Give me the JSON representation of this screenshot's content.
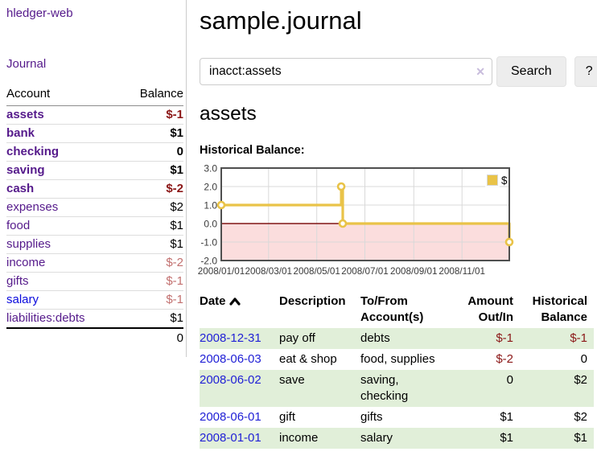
{
  "palette": {
    "link_purple": "#551a8b",
    "link_blue": "#0b0bdd",
    "date_link_blue": "#2121d6",
    "negative_red": "#8b1717",
    "faded_negative_red": "#c2706f",
    "zebra_green": "#e1efd9",
    "series_yellow": "#e9c348",
    "negative_region_pink": "#fbdddd",
    "zero_line_red": "#801515",
    "plot_border_gray": "#4f4f4f",
    "grid_gray": "#d9d9d9",
    "button_gray": "#ededed"
  },
  "sidebar": {
    "brand": "hledger-web",
    "nav": {
      "journal": "Journal"
    },
    "accounts_table": {
      "headers": {
        "account": "Account",
        "balance": "Balance"
      },
      "rows": [
        {
          "name": "assets",
          "level": 1,
          "bold": true,
          "balance": "$-1",
          "balance_class": "strong neg"
        },
        {
          "name": "bank",
          "level": 2,
          "bold": true,
          "balance": "$1",
          "balance_class": "strong"
        },
        {
          "name": "checking",
          "level": 3,
          "bold": true,
          "balance": "0",
          "balance_class": "strong"
        },
        {
          "name": "saving",
          "level": 3,
          "bold": true,
          "balance": "$1",
          "balance_class": "strong"
        },
        {
          "name": "cash",
          "level": 2,
          "bold": true,
          "balance": "$-2",
          "balance_class": "strong neg"
        },
        {
          "name": "expenses",
          "level": 1,
          "bold": false,
          "balance": "$2",
          "balance_class": ""
        },
        {
          "name": "food",
          "level": 2,
          "bold": false,
          "balance": "$1",
          "balance_class": ""
        },
        {
          "name": "supplies",
          "level": 2,
          "bold": false,
          "balance": "$1",
          "balance_class": ""
        },
        {
          "name": "income",
          "level": 1,
          "bold": false,
          "balance": "$-2",
          "balance_class": "dim"
        },
        {
          "name": "gifts",
          "level": 2,
          "bold": false,
          "balance": "$-1",
          "balance_class": "dim"
        },
        {
          "name": "salary",
          "level": 2,
          "bold": false,
          "link_style": "unvisited",
          "balance": "$-1",
          "balance_class": "dim"
        },
        {
          "name": "liabilities:debts",
          "level": 1,
          "bold": false,
          "balance": "$1",
          "balance_class": ""
        }
      ],
      "total": "0"
    }
  },
  "main": {
    "title": "sample.journal",
    "search": {
      "value": "inacct:assets",
      "clear_icon": "✕",
      "button": "Search",
      "help": "?"
    },
    "account_heading": "assets",
    "chart_label": "Historical Balance:",
    "register_table": {
      "headers": [
        {
          "label": "Date",
          "sortable": true,
          "align": "left"
        },
        {
          "label": "Description",
          "align": "left"
        },
        {
          "label": "To/From Account(s)",
          "align": "left"
        },
        {
          "label": "Amount Out/In",
          "align": "right"
        },
        {
          "label": "Historical Balance",
          "align": "right"
        }
      ],
      "rows": [
        {
          "date": "2008-12-31",
          "description": "pay off",
          "accounts": [
            "debts"
          ],
          "amount": "$-1",
          "amount_neg": true,
          "balance": "$-1",
          "balance_neg": true
        },
        {
          "date": "2008-06-03",
          "description": "eat & shop",
          "accounts": [
            "food",
            "supplies"
          ],
          "amount": "$-2",
          "amount_neg": true,
          "balance": "0",
          "balance_neg": false
        },
        {
          "date": "2008-06-02",
          "description": "save",
          "accounts": [
            "saving",
            "checking"
          ],
          "amount": "0",
          "amount_neg": false,
          "balance": "$2",
          "balance_neg": false
        },
        {
          "date": "2008-06-01",
          "description": "gift",
          "accounts": [
            "gifts"
          ],
          "amount": "$1",
          "amount_neg": false,
          "balance": "$2",
          "balance_neg": false
        },
        {
          "date": "2008-01-01",
          "description": "income",
          "accounts": [
            "salary"
          ],
          "amount": "$1",
          "amount_neg": false,
          "balance": "$1",
          "balance_neg": false
        }
      ]
    }
  },
  "chart_data": {
    "type": "line",
    "steps": true,
    "title": "Historical Balance",
    "legend": "$",
    "legend_position": "top-right",
    "grid": true,
    "series": [
      {
        "name": "$",
        "color": "#e9c348",
        "points": [
          {
            "date": "2008/01/01",
            "value": 1
          },
          {
            "date": "2008/06/01",
            "value": 2
          },
          {
            "date": "2008/06/03",
            "value": 0
          },
          {
            "date": "2008/12/31",
            "value": -1
          }
        ]
      }
    ],
    "xlim": [
      "2008/01/01",
      "2008/12/31"
    ],
    "ylim": [
      -2,
      3
    ],
    "yticks": [
      {
        "value": 3,
        "label": "3.0"
      },
      {
        "value": 2,
        "label": "2.0"
      },
      {
        "value": 1,
        "label": "1.0"
      },
      {
        "value": 0,
        "label": "0.0"
      },
      {
        "value": -1,
        "label": "-1.0"
      },
      {
        "value": -2,
        "label": "-2.0"
      }
    ],
    "xticks": [
      {
        "date": "2008/01/01",
        "label": "2008/01/01"
      },
      {
        "date": "2008/03/01",
        "label": "2008/03/01"
      },
      {
        "date": "2008/05/01",
        "label": "2008/05/01"
      },
      {
        "date": "2008/07/01",
        "label": "2008/07/01"
      },
      {
        "date": "2008/09/01",
        "label": "2008/09/01"
      },
      {
        "date": "2008/11/01",
        "label": "2008/11/01"
      }
    ],
    "negative_region": {
      "from": 0,
      "to": -2
    },
    "zero_line": true
  }
}
